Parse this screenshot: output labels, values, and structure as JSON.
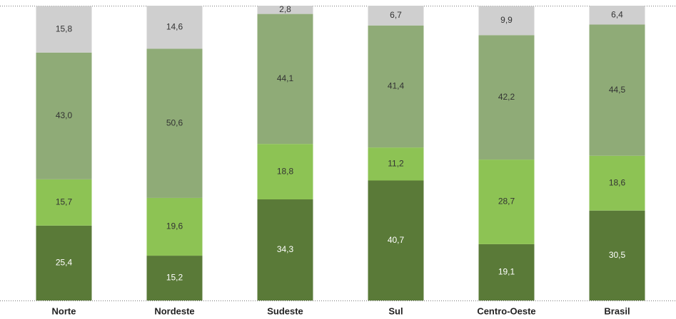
{
  "chart_data": {
    "type": "stacked_bar",
    "categories": [
      "Norte",
      "Nordeste",
      "Sudeste",
      "Sul",
      "Centro-Oeste",
      "Brasil"
    ],
    "series": [
      {
        "color": "#5a7a38",
        "values": [
          25.4,
          15.2,
          34.3,
          40.7,
          19.1,
          30.5
        ],
        "value_labels": [
          "25,4",
          "15,2",
          "34,3",
          "40,7",
          "19,1",
          "30,5"
        ]
      },
      {
        "color": "#8dc354",
        "values": [
          15.7,
          19.6,
          18.8,
          11.2,
          28.7,
          18.6
        ],
        "value_labels": [
          "15,7",
          "19,6",
          "18,8",
          "11,2",
          "28,7",
          "18,6"
        ]
      },
      {
        "color": "#8fab77",
        "values": [
          43.0,
          50.6,
          44.1,
          41.4,
          42.2,
          44.5
        ],
        "value_labels": [
          "43,0",
          "50,6",
          "44,1",
          "41,4",
          "42,2",
          "44,5"
        ]
      },
      {
        "color": "#cfcfcf",
        "values": [
          15.8,
          14.6,
          2.8,
          6.7,
          9.9,
          6.4
        ],
        "value_labels": [
          "15,8",
          "14,6",
          "2,8",
          "6,7",
          "9,9",
          "6,4"
        ]
      }
    ],
    "ylim": [
      0,
      100
    ]
  }
}
